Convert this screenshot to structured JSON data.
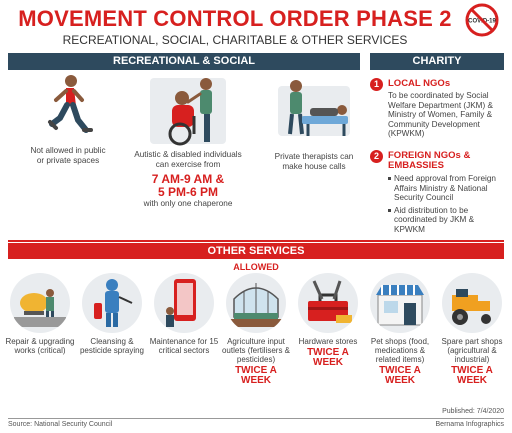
{
  "header": {
    "title": "MOVEMENT CONTROL ORDER PHASE 2",
    "subtitle": "RECREATIONAL, SOCIAL, CHARITABLE & OTHER SERVICES",
    "badge_text": "COVID-19"
  },
  "recreational": {
    "heading": "RECREATIONAL & SOCIAL",
    "items": [
      {
        "text": "Not allowed in public or private spaces",
        "icon": "runner-icon"
      },
      {
        "text": "Autistic & disabled individuals can exercise from",
        "time_1": "7 AM-9 AM &",
        "time_2": "5 PM-6 PM",
        "note": "with only one chaperone",
        "icon": "wheelchair-icon"
      },
      {
        "text": "Private therapists can make house calls",
        "icon": "therapist-icon"
      }
    ]
  },
  "charity": {
    "heading": "CHARITY",
    "local": {
      "number": "1",
      "title": "LOCAL NGOs",
      "body": "To be coordinated by Social Welfare Department (JKM) & Ministry of Women, Family & Community Development (KPWKM)"
    },
    "foreign": {
      "number": "2",
      "title": "FOREIGN NGOs & EMBASSIES",
      "bullets": [
        "Need approval from Foreign Affairs Ministry & National Security Council",
        "Aid distribution to be coordinated by JKM & KPWKM"
      ]
    }
  },
  "other_services": {
    "heading": "OTHER SERVICES",
    "allowed_label": "ALLOWED",
    "items": [
      {
        "label": "Repair & upgrading works (critical)",
        "twice": "",
        "icon": "cement-mixer-icon"
      },
      {
        "label": "Cleansing & pesticide spraying",
        "twice": "",
        "icon": "sprayer-icon"
      },
      {
        "label": "Maintenance for 15 critical sectors",
        "twice": "",
        "icon": "phone-repair-icon"
      },
      {
        "label": "Agriculture input outlets (fertilisers & pesticides)",
        "twice": "TWICE A WEEK",
        "icon": "greenhouse-icon"
      },
      {
        "label": "Hardware stores",
        "twice": "TWICE A WEEK",
        "icon": "toolbox-icon"
      },
      {
        "label": "Pet shops (food, medications & related items)",
        "twice": "TWICE A WEEK",
        "icon": "pet-shop-icon"
      },
      {
        "label": "Spare part shops (agricultural & industrial)",
        "twice": "TWICE A WEEK",
        "icon": "tractor-icon"
      }
    ]
  },
  "footer": {
    "source": "Source: National Security Council",
    "published": "Published: 7/4/2020",
    "credit": "Bernama Infographics"
  },
  "colors": {
    "red": "#d7201f",
    "navy": "#2e4a5e"
  }
}
